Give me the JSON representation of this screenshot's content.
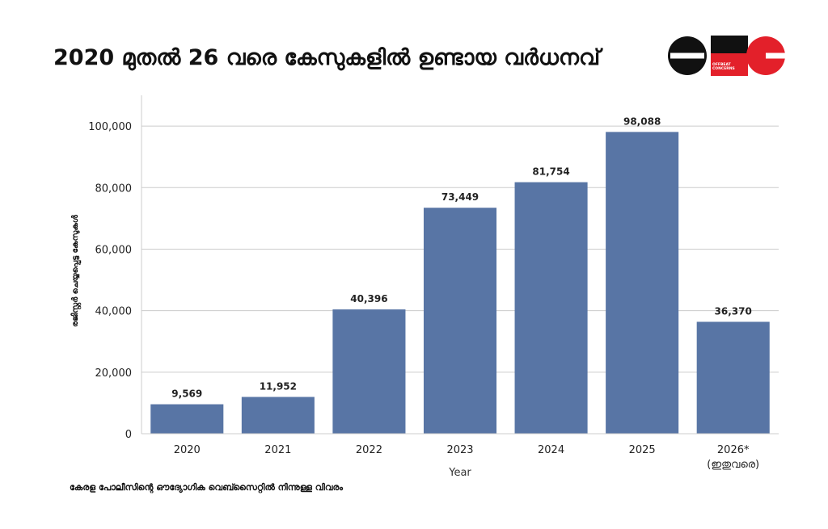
{
  "header": {
    "title": "2020 മുതൽ 26 വരെ കേസുകളിൽ ഉണ്ടായ വർധനവ്",
    "logo_name": "OBC",
    "logo_tagline": "OFFBEAT CONCERNS"
  },
  "footnote": "കേരള പോലീസിന്റെ ഔദ്യോഗിക വെബ്സൈറ്റിൽ നിന്നുള്ള വിവരം",
  "colors": {
    "bar": "#5875a5",
    "grid": "#cccccc",
    "logo_red": "#e3202a",
    "logo_black": "#111111"
  },
  "chart_data": {
    "type": "bar",
    "categories": [
      "2020",
      "2021",
      "2022",
      "2023",
      "2024",
      "2025",
      "2026*"
    ],
    "category_sublabels": [
      "",
      "",
      "",
      "",
      "",
      "",
      "(ഇതുവരെ)"
    ],
    "values": [
      9569,
      11952,
      40396,
      73449,
      81754,
      98088,
      36370
    ],
    "value_labels": [
      "9,569",
      "11,952",
      "40,396",
      "73,449",
      "81,754",
      "98,088",
      "36,370"
    ],
    "xlabel": "Year",
    "ylabel": "രജിസ്റ്റർ ചെയ്യപ്പെട്ട കേസുകൾ",
    "yticks": [
      0,
      20000,
      40000,
      60000,
      80000,
      100000
    ],
    "ytick_labels": [
      "0",
      "20,000",
      "40,000",
      "60,000",
      "80,000",
      "100,000"
    ],
    "ylim": [
      0,
      110000
    ],
    "grid": true
  }
}
